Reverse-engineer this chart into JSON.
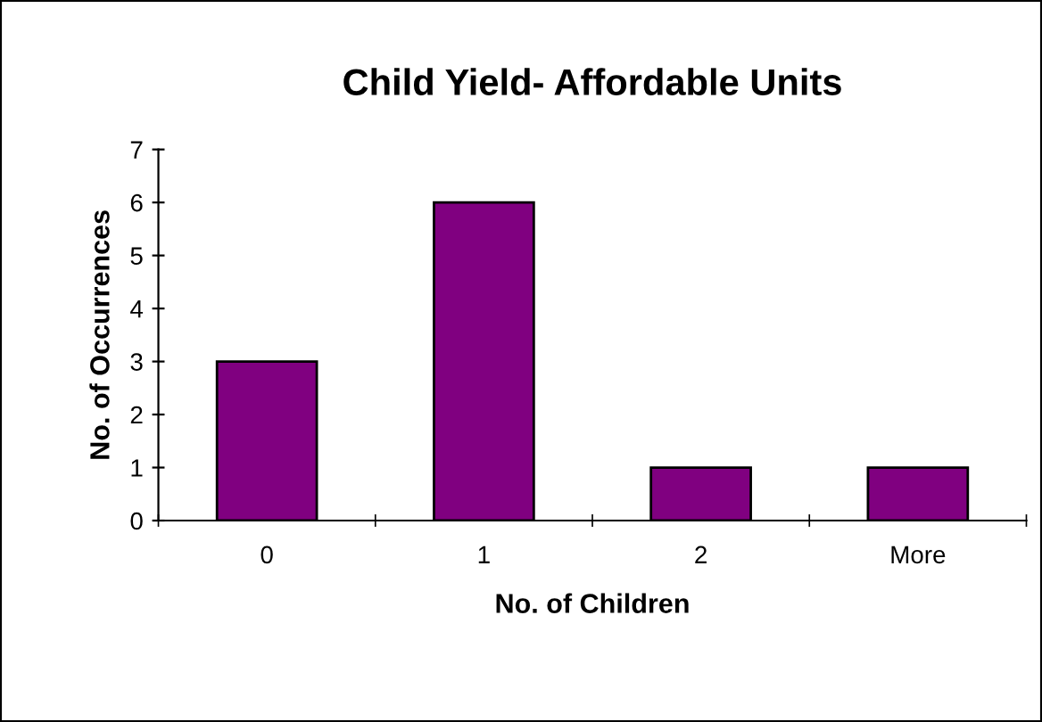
{
  "chart_data": {
    "type": "bar",
    "title": "Child Yield- Affordable Units",
    "xlabel": "No. of Children",
    "ylabel": "No. of Occurrences",
    "categories": [
      "0",
      "1",
      "2",
      "More"
    ],
    "values": [
      3,
      6,
      1,
      1
    ],
    "color": "#800080",
    "ylim": [
      0,
      7
    ],
    "yticks": [
      0,
      1,
      2,
      3,
      4,
      5,
      6,
      7
    ],
    "grid": false,
    "legend": false
  }
}
